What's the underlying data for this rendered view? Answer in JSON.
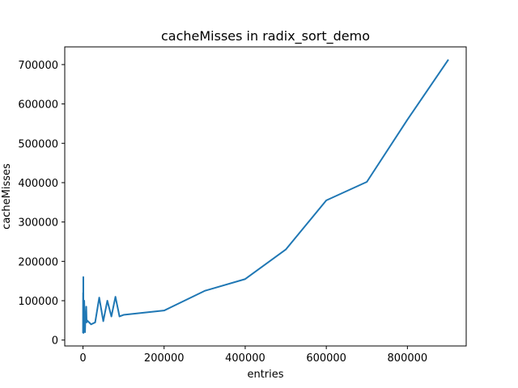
{
  "chart_data": {
    "type": "line",
    "title": "cacheMisses in radix_sort_demo",
    "xlabel": "entries",
    "ylabel": "cacheMisses",
    "xlim": [
      -45000,
      945000
    ],
    "ylim": [
      -15000,
      745000
    ],
    "xticks": [
      0,
      200000,
      400000,
      600000,
      800000
    ],
    "xtick_labels": [
      "0",
      "200000",
      "400000",
      "600000",
      "800000"
    ],
    "yticks": [
      0,
      100000,
      200000,
      300000,
      400000,
      500000,
      600000,
      700000
    ],
    "ytick_labels": [
      "0",
      "100000",
      "200000",
      "300000",
      "400000",
      "500000",
      "600000",
      "700000"
    ],
    "grid": false,
    "line_color": "#1f77b4",
    "series": [
      {
        "x": [
          100,
          300,
          600,
          800,
          1000,
          2000,
          3000,
          4000,
          5000,
          6000,
          7000,
          8000,
          9000,
          10000,
          20000,
          30000,
          40000,
          50000,
          60000,
          70000,
          80000,
          90000,
          100000,
          200000,
          300000,
          400000,
          500000,
          600000,
          700000,
          800000,
          900000
        ],
        "y": [
          20000,
          120000,
          60000,
          160000,
          18000,
          40000,
          100000,
          55000,
          20000,
          60000,
          50000,
          85000,
          45000,
          50000,
          40000,
          45000,
          108000,
          48000,
          100000,
          60000,
          110000,
          60000,
          64000,
          75000,
          125000,
          155000,
          230000,
          355000,
          402000,
          560000,
          711000
        ]
      }
    ]
  }
}
